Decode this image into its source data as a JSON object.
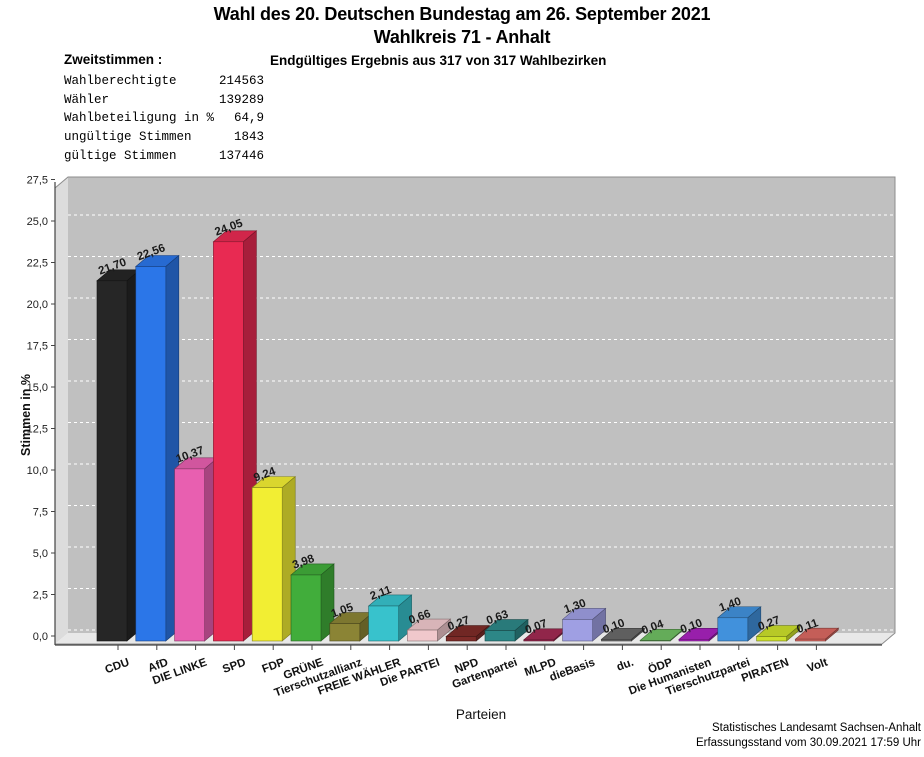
{
  "header": {
    "title_line1": "Wahl des 20. Deutschen Bundestag am 26. September 2021",
    "title_line2": "Wahlkreis 71 - Anhalt"
  },
  "stats": {
    "heading": "Zweitstimmen :",
    "result_note": "Endgültiges Ergebnis aus 317 von 317 Wahlbezirken",
    "rows": [
      {
        "label": "Wahlberechtigte",
        "value": "214563"
      },
      {
        "label": "Wähler",
        "value": "139289"
      },
      {
        "label": "Wahlbeteiligung in %",
        "value": "64,9"
      },
      {
        "label": "ungültige Stimmen",
        "value": "1843"
      },
      {
        "label": "gültige Stimmen",
        "value": "137446"
      }
    ]
  },
  "chart_data": {
    "type": "bar",
    "title": "",
    "xlabel": "Parteien",
    "ylabel": "Stimmen in %",
    "ylim": [
      0,
      27.5
    ],
    "ytick_step": 2.5,
    "ytick_decimal": "comma",
    "grid": "horizontal-dashed-white",
    "style": "3d-bars",
    "categories": [
      "CDU",
      "AfD",
      "DIE LINKE",
      "SPD",
      "FDP",
      "GRÜNE",
      "Tierschutzallianz",
      "FREIE WÄHLER",
      "Die PARTEI",
      "NPD",
      "Gartenpartei",
      "MLPD",
      "dieBasis",
      "du.",
      "ÖDP",
      "Die Humanisten",
      "Tierschutzpartei",
      "PIRATEN",
      "Volt"
    ],
    "values": [
      21.7,
      22.56,
      10.37,
      24.05,
      9.24,
      3.98,
      1.05,
      2.11,
      0.66,
      0.27,
      0.63,
      0.07,
      1.3,
      0.1,
      0.04,
      0.1,
      1.4,
      0.27,
      0.11
    ],
    "value_labels": [
      "21,70",
      "22,56",
      "10,37",
      "24,05",
      "9,24",
      "3,98",
      "1,05",
      "2,11",
      "0,66",
      "0,27",
      "0,63",
      "0,07",
      "1,30",
      "0,10",
      "0,04",
      "0,10",
      "1,40",
      "0,27",
      "0,11"
    ],
    "bar_colors": [
      "#262626",
      "#2b76e8",
      "#e85fb0",
      "#e82a52",
      "#f2ee33",
      "#41ad3b",
      "#8b8435",
      "#38c2cc",
      "#f0c8cc",
      "#7d2b28",
      "#2d8787",
      "#a12a52",
      "#9f9fe3",
      "#696969",
      "#6fbf63",
      "#a922be",
      "#4191dc",
      "#cbdf2b",
      "#da6862"
    ],
    "wall_color": "#c0c0c0",
    "left_wall_color": "#dcdcdc",
    "floor_color": "#e8e8e8",
    "gridline_color": "#ffffff",
    "axis_color": "#444444"
  },
  "footer": {
    "line1": "Statistisches Landesamt Sachsen-Anhalt",
    "line2": "Erfassungsstand vom 30.09.2021 17:59 Uhr"
  }
}
